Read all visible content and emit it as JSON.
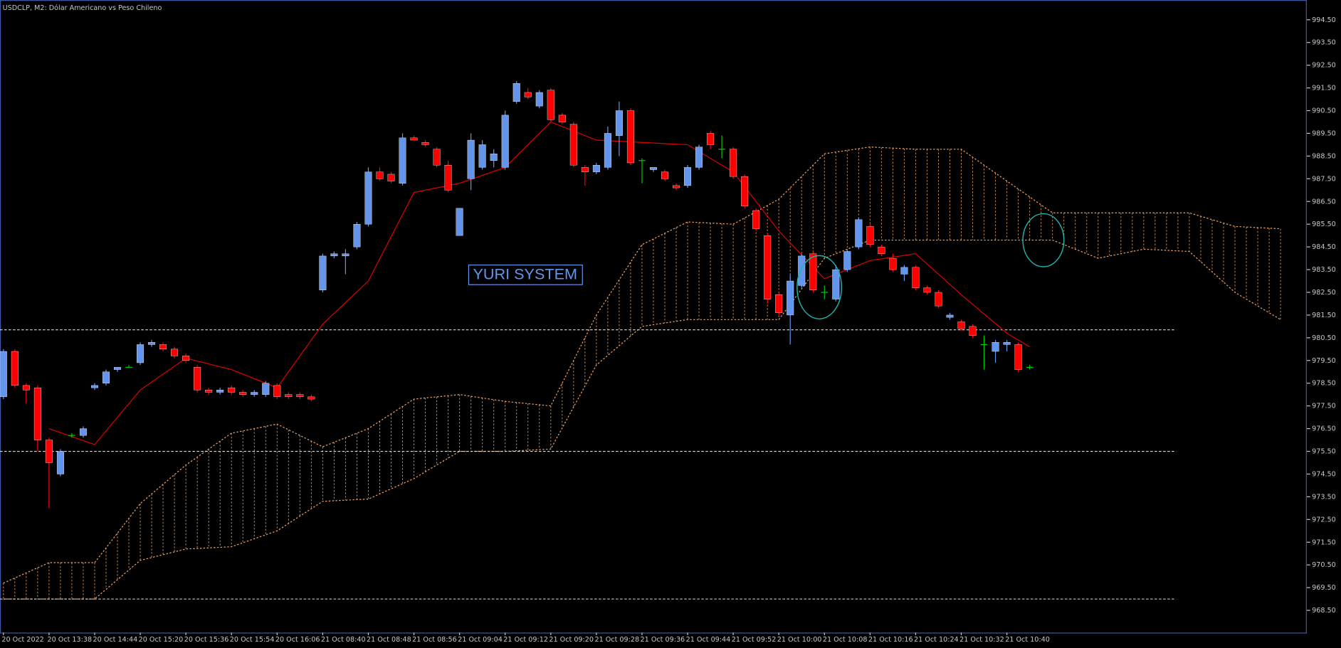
{
  "chart_data": {
    "type": "candlestick",
    "title": "USDCLP, M2:  Dólar Americano vs Peso Chileno",
    "annotation": "YURI SYSTEM",
    "categories": [
      "20 Oct 2022",
      null,
      null,
      null,
      "20 Oct 13:38",
      null,
      null,
      null,
      "20 Oct 14:44",
      null,
      null,
      null,
      "20 Oct 15:20",
      null,
      null,
      null,
      "20 Oct 15:36",
      null,
      null,
      null,
      "20 Oct 15:54",
      null,
      null,
      null,
      "20 Oct 16:06",
      null,
      null,
      null,
      "21 Oct 08:40",
      null,
      null,
      null,
      "21 Oct 08:48",
      null,
      null,
      null,
      "21 Oct 08:56",
      null,
      null,
      null,
      "21 Oct 09:04",
      null,
      null,
      null,
      "21 Oct 09:12",
      null,
      null,
      null,
      "21 Oct 09:20",
      null,
      null,
      null,
      "21 Oct 09:28",
      null,
      null,
      null,
      "21 Oct 09:36",
      null,
      null,
      null,
      "21 Oct 09:44",
      null,
      null,
      null,
      "21 Oct 09:52",
      null,
      null,
      null,
      "21 Oct 10:00",
      null,
      null,
      null,
      "21 Oct 10:08",
      null,
      null,
      null,
      "21 Oct 10:16",
      null,
      null,
      null,
      "21 Oct 10:24",
      null,
      null,
      null,
      "21 Oct 10:32",
      null,
      null,
      null,
      "21 Oct 10:40",
      null,
      null
    ],
    "open": [
      977.9,
      979.9,
      978.4,
      978.3,
      976.0,
      974.5,
      976.2,
      976.2,
      978.3,
      978.5,
      979.1,
      979.2,
      979.4,
      980.2,
      980.2,
      980.0,
      979.7,
      979.2,
      978.2,
      978.1,
      978.3,
      978.1,
      978.0,
      978.0,
      978.4,
      978.0,
      978.0,
      977.9,
      982.6,
      984.1,
      984.1,
      984.5,
      985.5,
      987.8,
      987.7,
      987.3,
      989.3,
      989.1,
      988.8,
      988.1,
      985.0,
      987.5,
      988.0,
      988.3,
      988.0,
      990.9,
      991.3,
      990.7,
      991.4,
      990.3,
      989.9,
      988.0,
      987.8,
      988.0,
      989.4,
      990.5,
      988.3,
      987.9,
      987.8,
      987.2,
      987.2,
      988.0,
      989.5,
      988.8,
      988.8,
      987.6,
      986.1,
      985.0,
      982.4,
      981.5,
      982.8,
      984.2,
      982.5,
      982.2,
      983.5,
      984.5,
      985.4,
      984.5,
      984.0,
      983.3,
      983.6,
      982.7,
      982.5,
      981.4,
      981.2,
      981.0,
      980.2,
      979.9,
      980.2,
      980.2,
      979.2
    ],
    "high": [
      980.0,
      980.0,
      978.5,
      978.4,
      976.1,
      975.6,
      976.3,
      976.6,
      978.5,
      979.1,
      979.2,
      979.3,
      980.3,
      980.4,
      980.3,
      980.1,
      979.8,
      979.3,
      978.3,
      978.3,
      978.4,
      978.2,
      978.2,
      978.6,
      978.5,
      978.1,
      978.1,
      978.0,
      984.2,
      984.3,
      984.4,
      985.6,
      988.0,
      988.0,
      987.8,
      989.5,
      989.4,
      989.2,
      988.9,
      988.3,
      986.2,
      989.5,
      989.2,
      988.8,
      990.5,
      991.8,
      991.5,
      991.4,
      991.5,
      990.4,
      990.0,
      988.1,
      988.2,
      989.8,
      990.9,
      990.6,
      988.4,
      988.0,
      987.9,
      987.3,
      988.1,
      989.0,
      989.6,
      989.4,
      988.9,
      987.7,
      986.2,
      985.1,
      982.5,
      983.3,
      984.2,
      984.3,
      982.8,
      983.7,
      984.4,
      985.8,
      985.5,
      984.6,
      984.2,
      983.7,
      983.7,
      982.8,
      982.6,
      981.6,
      981.3,
      981.1,
      980.6,
      980.4,
      980.4,
      980.3,
      979.3
    ],
    "low": [
      977.8,
      978.3,
      977.6,
      975.5,
      973.0,
      974.4,
      976.1,
      976.1,
      978.2,
      978.4,
      979.0,
      979.2,
      979.3,
      980.1,
      979.9,
      979.6,
      979.4,
      978.1,
      978.0,
      978.0,
      978.0,
      977.9,
      977.9,
      977.9,
      977.8,
      977.8,
      977.8,
      977.7,
      982.5,
      984.0,
      983.3,
      984.4,
      985.4,
      987.4,
      987.3,
      987.2,
      989.2,
      988.9,
      988.0,
      986.9,
      985.0,
      987.0,
      987.9,
      988.0,
      987.9,
      990.8,
      991.0,
      990.6,
      990.0,
      989.9,
      988.0,
      987.2,
      987.7,
      987.9,
      988.5,
      988.1,
      987.3,
      987.8,
      987.4,
      987.0,
      987.1,
      987.9,
      988.8,
      988.4,
      987.5,
      986.2,
      985.2,
      982.0,
      981.5,
      980.2,
      982.7,
      982.5,
      982.2,
      982.1,
      983.4,
      984.4,
      984.5,
      984.1,
      983.4,
      983.0,
      982.6,
      982.4,
      981.8,
      981.3,
      980.8,
      980.5,
      979.1,
      979.4,
      979.9,
      979.0,
      979.1
    ],
    "close": [
      979.9,
      978.4,
      978.2,
      976.0,
      975.0,
      975.5,
      976.2,
      976.5,
      978.4,
      979.0,
      979.2,
      979.2,
      980.2,
      980.3,
      980.0,
      979.7,
      979.5,
      978.2,
      978.1,
      978.2,
      978.1,
      978.0,
      978.1,
      978.5,
      977.9,
      977.9,
      977.9,
      977.8,
      984.1,
      984.2,
      984.2,
      985.5,
      987.8,
      987.5,
      987.4,
      989.3,
      989.2,
      989.0,
      988.1,
      987.0,
      986.2,
      989.2,
      989.0,
      988.6,
      990.3,
      991.7,
      991.1,
      991.3,
      990.1,
      990.0,
      988.1,
      987.8,
      988.1,
      989.5,
      990.5,
      988.2,
      988.3,
      988.0,
      987.5,
      987.1,
      988.0,
      988.9,
      989.0,
      988.8,
      987.6,
      986.3,
      985.3,
      982.2,
      981.6,
      983.0,
      984.1,
      982.6,
      982.5,
      983.5,
      984.3,
      985.7,
      984.6,
      984.2,
      983.5,
      983.6,
      982.7,
      982.5,
      981.9,
      981.5,
      980.9,
      980.6,
      980.2,
      980.3,
      980.3,
      979.1,
      979.2
    ],
    "up_color": "#6495ed",
    "down_color": "#ff0000",
    "doji_color": "#00c800",
    "kijun": {
      "color": "#e00000",
      "x": [
        4,
        8,
        12,
        16,
        20,
        24,
        28,
        32,
        36,
        40,
        44,
        48,
        52,
        56,
        60,
        64,
        68,
        72,
        76,
        80,
        84,
        88,
        90
      ],
      "values": [
        976.5,
        975.8,
        978.2,
        979.6,
        979.1,
        978.3,
        981.1,
        983.0,
        986.9,
        987.3,
        988.0,
        990.0,
        989.2,
        989.1,
        989.0,
        987.8,
        985.2,
        983.1,
        983.9,
        984.2,
        982.4,
        980.7,
        980.1
      ]
    },
    "cloud": {
      "color": "#f4a460",
      "x": [
        0,
        4,
        8,
        12,
        16,
        20,
        24,
        28,
        32,
        36,
        40,
        44,
        48,
        52,
        56,
        60,
        64,
        68,
        72,
        76,
        80,
        84,
        88,
        92,
        96,
        100,
        104,
        108,
        112
      ],
      "span_a": [
        969.7,
        970.6,
        970.6,
        973.2,
        974.9,
        976.3,
        976.7,
        975.7,
        976.5,
        977.8,
        978.0,
        977.7,
        977.5,
        981.5,
        984.6,
        985.6,
        985.5,
        986.6,
        988.6,
        988.9,
        988.8,
        988.8,
        987.4,
        986.0,
        986.0,
        986.0,
        986.0,
        985.4,
        985.3
      ],
      "span_b": [
        969.0,
        969.0,
        969.0,
        970.7,
        971.2,
        971.3,
        972.0,
        973.3,
        973.4,
        974.3,
        975.5,
        975.5,
        975.6,
        979.3,
        981.0,
        981.3,
        981.3,
        981.3,
        984.0,
        984.8,
        984.8,
        984.8,
        984.8,
        984.8,
        984.0,
        984.4,
        984.3,
        982.5,
        981.3
      ]
    },
    "levels": [
      969.0,
      975.5,
      980.85
    ],
    "level_color": "#dcdcdc",
    "xlim": [
      -0.3,
      114.3
    ],
    "ylim": [
      967.52,
      995.37
    ],
    "yticks": [
      {
        "value": 968.5,
        "label": "968.50"
      },
      {
        "value": 969.5,
        "label": "969.50"
      },
      {
        "value": 970.5,
        "label": "970.50"
      },
      {
        "value": 971.5,
        "label": "971.50"
      },
      {
        "value": 972.5,
        "label": "972.50"
      },
      {
        "value": 973.5,
        "label": "973.50"
      },
      {
        "value": 974.5,
        "label": "974.50"
      },
      {
        "value": 975.5,
        "label": "975.50"
      },
      {
        "value": 976.5,
        "label": "976.50"
      },
      {
        "value": 977.5,
        "label": "977.50"
      },
      {
        "value": 978.5,
        "label": "978.50"
      },
      {
        "value": 979.5,
        "label": "979.50"
      },
      {
        "value": 980.5,
        "label": "980.50"
      },
      {
        "value": 981.5,
        "label": "981.50"
      },
      {
        "value": 982.5,
        "label": "982.50"
      },
      {
        "value": 983.5,
        "label": "983.50"
      },
      {
        "value": 984.5,
        "label": "984.50"
      },
      {
        "value": 985.5,
        "label": "985.50"
      },
      {
        "value": 986.5,
        "label": "986.50"
      },
      {
        "value": 987.5,
        "label": "987.50"
      },
      {
        "value": 988.5,
        "label": "988.50"
      },
      {
        "value": 989.5,
        "label": "989.50"
      },
      {
        "value": 990.5,
        "label": "990.50"
      },
      {
        "value": 991.5,
        "label": "991.50"
      },
      {
        "value": 992.5,
        "label": "992.50"
      },
      {
        "value": 993.5,
        "label": "993.50"
      },
      {
        "value": 994.5,
        "label": "994.50"
      }
    ]
  }
}
